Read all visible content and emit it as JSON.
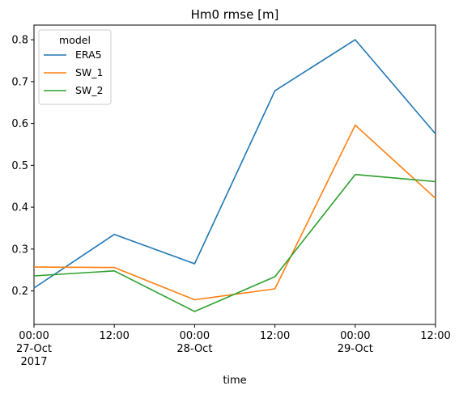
{
  "chart_data": {
    "type": "line",
    "title": "Hm0 rmse [m]",
    "xlabel": "time",
    "ylabel": "",
    "x": [
      0,
      12,
      24,
      36,
      48,
      60
    ],
    "x_tick_labels": [
      {
        "line1": "00:00",
        "line2": "27-Oct",
        "line3": "2017"
      },
      {
        "line1": "12:00",
        "line2": "",
        "line3": ""
      },
      {
        "line1": "00:00",
        "line2": "28-Oct",
        "line3": ""
      },
      {
        "line1": "12:00",
        "line2": "",
        "line3": ""
      },
      {
        "line1": "00:00",
        "line2": "29-Oct",
        "line3": ""
      },
      {
        "line1": "12:00",
        "line2": "",
        "line3": ""
      }
    ],
    "xlim": [
      0,
      60
    ],
    "ylim": [
      0.12,
      0.835
    ],
    "y_ticks": [
      0.2,
      0.3,
      0.4,
      0.5,
      0.6,
      0.7,
      0.8
    ],
    "y_tick_labels": [
      "0.2",
      "0.3",
      "0.4",
      "0.5",
      "0.6",
      "0.7",
      "0.8"
    ],
    "legend": {
      "title": "model",
      "position": "top-left"
    },
    "series": [
      {
        "name": "ERA5",
        "color": "#1f77b4",
        "values": [
          0.207,
          0.335,
          0.265,
          0.678,
          0.8,
          0.575
        ]
      },
      {
        "name": "SW_1",
        "color": "#ff7f0e",
        "values": [
          0.257,
          0.256,
          0.179,
          0.205,
          0.596,
          0.421
        ]
      },
      {
        "name": "SW_2",
        "color": "#2ca02c",
        "values": [
          0.236,
          0.248,
          0.151,
          0.234,
          0.478,
          0.461
        ]
      }
    ]
  }
}
